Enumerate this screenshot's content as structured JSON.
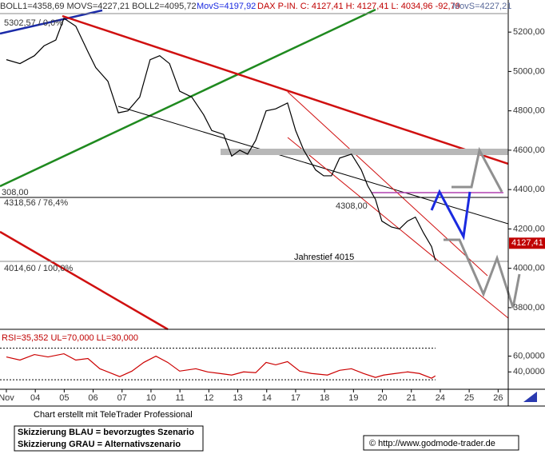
{
  "chart_data": [
    {
      "type": "line",
      "header": [
        "BOLL1=4358,69 MOVS=4227,21 BOLL2=4095,72",
        "MovS=4197,92",
        "DAX P-IN. C: 4127,41 H: 4127,41 L: 4034,96 -92,79",
        "MovS=4227,21"
      ],
      "annotations": [
        "5302,57 / 0,0%",
        "308,00",
        "4318,56 / 76,4%",
        "4308,00",
        "Jahrestief 4015",
        "4014,60 / 100,0%"
      ],
      "last_price": {
        "value": 4127.41,
        "label": "4127,41"
      },
      "x": [
        0,
        0.47,
        0.97,
        1.3,
        1.71,
        1.99,
        2.4,
        2.82,
        3.09,
        3.51,
        3.87,
        4.2,
        4.61,
        4.97,
        5.3,
        5.64,
        5.99,
        6.41,
        6.82,
        7.1,
        7.51,
        7.79,
        8.07,
        8.34,
        8.62,
        8.98,
        9.31,
        9.72,
        10,
        10.28,
        10.69,
        10.97,
        11.24,
        11.52,
        11.93,
        12.27,
        12.49,
        12.76,
        12.98,
        13.31,
        13.59,
        13.87,
        14.14,
        14.42,
        14.7,
        14.83
      ],
      "series": [
        {
          "name": "DAX",
          "color": "#000000",
          "values": [
            5060,
            5040,
            5080,
            5130,
            5160,
            5270,
            5230,
            5100,
            5020,
            4950,
            4790,
            4800,
            4870,
            5060,
            5080,
            5040,
            4900,
            4870,
            4780,
            4700,
            4680,
            4570,
            4600,
            4580,
            4650,
            4800,
            4810,
            4840,
            4700,
            4600,
            4500,
            4470,
            4470,
            4560,
            4580,
            4500,
            4420,
            4350,
            4240,
            4210,
            4200,
            4240,
            4260,
            4180,
            4110,
            4040
          ]
        }
      ],
      "xlim": [
        -0.22,
        17.35
      ],
      "xticks": [
        {
          "value": 0,
          "label": "Nov"
        },
        {
          "value": 1,
          "label": "04"
        },
        {
          "value": 2,
          "label": "05"
        },
        {
          "value": 3,
          "label": "06"
        },
        {
          "value": 4,
          "label": "07"
        },
        {
          "value": 5,
          "label": "10"
        },
        {
          "value": 6,
          "label": "11"
        },
        {
          "value": 7,
          "label": "12"
        },
        {
          "value": 8,
          "label": "13"
        },
        {
          "value": 9,
          "label": "14"
        },
        {
          "value": 10,
          "label": "17"
        },
        {
          "value": 11,
          "label": "18"
        },
        {
          "value": 12,
          "label": "19"
        },
        {
          "value": 13,
          "label": "20"
        },
        {
          "value": 14,
          "label": "21"
        },
        {
          "value": 15,
          "label": "24"
        },
        {
          "value": 16,
          "label": "25"
        },
        {
          "value": 17,
          "label": "26"
        }
      ],
      "ylim": [
        3690,
        5290
      ],
      "yticks": [
        {
          "value": 3800,
          "label": "3800,00"
        },
        {
          "value": 4000,
          "label": "4000,00"
        },
        {
          "value": 4200,
          "label": "4200,00"
        },
        {
          "value": 4400,
          "label": "4400,00"
        },
        {
          "value": 4600,
          "label": "4600,00"
        },
        {
          "value": 4800,
          "label": "4800,00"
        },
        {
          "value": 5000,
          "label": "5000,00"
        },
        {
          "value": 5200,
          "label": "5200,00"
        }
      ]
    },
    {
      "type": "line",
      "title": "RSI=35,352 UL=70,000 LL=30,000",
      "x": [
        0,
        0.47,
        0.97,
        1.44,
        1.99,
        2.4,
        2.82,
        3.23,
        3.65,
        3.92,
        4.34,
        4.75,
        5.17,
        5.58,
        5.99,
        6.55,
        6.96,
        7.38,
        7.79,
        8.2,
        8.62,
        8.98,
        9.31,
        9.72,
        10.14,
        10.55,
        11.1,
        11.52,
        11.93,
        12.35,
        12.76,
        13.04,
        13.45,
        13.87,
        14.28,
        14.7,
        14.83
      ],
      "series": [
        {
          "name": "RSI",
          "color": "#cc0000",
          "values": [
            59,
            55,
            62,
            59,
            63,
            55,
            57,
            44,
            38,
            34,
            41,
            52,
            60,
            52,
            41,
            44,
            40,
            38,
            36,
            40,
            39,
            52,
            49,
            53,
            41,
            38,
            36,
            42,
            44,
            38,
            33,
            36,
            38,
            40,
            38,
            32,
            35
          ]
        }
      ],
      "levels": [
        70,
        30
      ],
      "xlim": [
        -0.22,
        17.35
      ],
      "ylim": [
        18,
        94
      ],
      "yticks": [
        {
          "value": 40,
          "label": "40,0000"
        },
        {
          "value": 60,
          "label": "60,0000"
        }
      ]
    }
  ],
  "footer": {
    "credit": "Chart erstellt mit TeleTrader Professional",
    "legend": [
      "Skizzierung BLAU = bevorzugtes Szenario",
      "Skizzierung GRAU = Alternativszenario"
    ],
    "source": "© http://www.godmode-trader.de"
  }
}
